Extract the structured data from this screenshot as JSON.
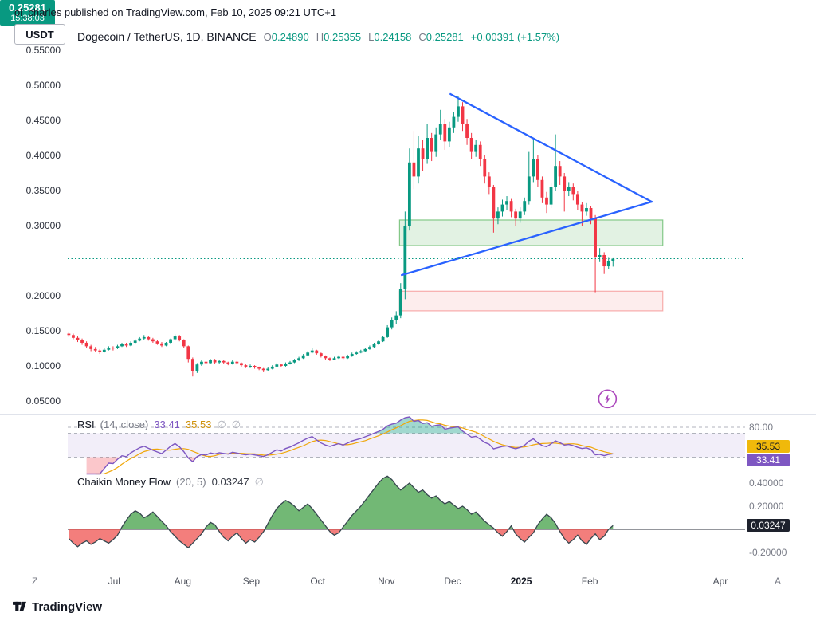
{
  "page": {
    "attribution": "ol_charles published on TradingView.com, Feb 10, 2025 09:21 UTC+1",
    "footer_brand": "TradingView"
  },
  "toolbar": {
    "currency_tab": "USDT"
  },
  "legend": {
    "symbol": "Dogecoin / TetherUS, 1D, BINANCE",
    "o_label": "O",
    "o": "0.24890",
    "h_label": "H",
    "h": "0.25355",
    "l_label": "L",
    "l": "0.24158",
    "c_label": "C",
    "c": "0.25281",
    "change": "+0.00391 (+1.57%)"
  },
  "price_scale": {
    "badge_price": "0.25281",
    "badge_countdown": "15:38:03"
  },
  "rsi_panel": {
    "title": "RSI",
    "params": "(14, close)",
    "value_rsi": "33.41",
    "value_ma": "35.53",
    "ghost": "∅",
    "level_label": "80.00",
    "badge_ma": "35.53",
    "badge_rsi": "33.41"
  },
  "cmf_panel": {
    "title": "Chaikin Money Flow",
    "params": "(20, 5)",
    "value": "0.03247",
    "ghost": "∅",
    "scale_top": "0.40000",
    "scale_mid": "0.20000",
    "badge": "0.03247",
    "scale_bottom": "-0.20000"
  },
  "time_axis": {
    "left_char": "Z",
    "right_char": "A"
  },
  "chart_data": {
    "type": "candlestick",
    "title": "Dogecoin / TetherUS, 1D, BINANCE",
    "price_axis": {
      "side": "left",
      "min": 0.05,
      "max": 0.55,
      "tick_step": 0.05
    },
    "price_ticks": [
      "0.55000",
      "0.50000",
      "0.45000",
      "0.40000",
      "0.35000",
      "0.30000",
      "0.20000",
      "0.15000",
      "0.10000",
      "0.05000"
    ],
    "time_axis_ticks": [
      {
        "label": "Jul",
        "day": 21
      },
      {
        "label": "Aug",
        "day": 52
      },
      {
        "label": "Sep",
        "day": 83
      },
      {
        "label": "Oct",
        "day": 113
      },
      {
        "label": "Nov",
        "day": 144
      },
      {
        "label": "Dec",
        "day": 174
      },
      {
        "label": "2025",
        "day": 205
      },
      {
        "label": "Feb",
        "day": 236
      },
      {
        "label": "Apr",
        "day": 295
      }
    ],
    "days_per_candle": 2,
    "price_line": 0.25281,
    "last_close": 0.25281,
    "candles": [
      [
        0.146,
        0.149,
        0.141,
        0.144
      ],
      [
        0.144,
        0.146,
        0.138,
        0.14
      ],
      [
        0.14,
        0.142,
        0.134,
        0.137
      ],
      [
        0.137,
        0.139,
        0.13,
        0.133
      ],
      [
        0.133,
        0.135,
        0.126,
        0.128
      ],
      [
        0.128,
        0.13,
        0.121,
        0.124
      ],
      [
        0.124,
        0.127,
        0.12,
        0.122
      ],
      [
        0.122,
        0.124,
        0.117,
        0.12
      ],
      [
        0.12,
        0.125,
        0.119,
        0.123
      ],
      [
        0.123,
        0.128,
        0.122,
        0.126
      ],
      [
        0.126,
        0.128,
        0.122,
        0.125
      ],
      [
        0.125,
        0.13,
        0.124,
        0.128
      ],
      [
        0.128,
        0.133,
        0.127,
        0.131
      ],
      [
        0.131,
        0.133,
        0.127,
        0.129
      ],
      [
        0.129,
        0.135,
        0.128,
        0.133
      ],
      [
        0.133,
        0.138,
        0.132,
        0.136
      ],
      [
        0.136,
        0.141,
        0.135,
        0.139
      ],
      [
        0.139,
        0.144,
        0.137,
        0.141
      ],
      [
        0.141,
        0.143,
        0.136,
        0.138
      ],
      [
        0.138,
        0.14,
        0.133,
        0.135
      ],
      [
        0.135,
        0.137,
        0.13,
        0.132
      ],
      [
        0.132,
        0.134,
        0.127,
        0.129
      ],
      [
        0.129,
        0.134,
        0.128,
        0.133
      ],
      [
        0.133,
        0.139,
        0.132,
        0.138
      ],
      [
        0.138,
        0.145,
        0.136,
        0.142
      ],
      [
        0.142,
        0.144,
        0.135,
        0.137
      ],
      [
        0.137,
        0.138,
        0.125,
        0.128
      ],
      [
        0.128,
        0.129,
        0.105,
        0.11
      ],
      [
        0.11,
        0.112,
        0.085,
        0.093
      ],
      [
        0.093,
        0.104,
        0.09,
        0.102
      ],
      [
        0.102,
        0.108,
        0.1,
        0.106
      ],
      [
        0.106,
        0.108,
        0.101,
        0.104
      ],
      [
        0.104,
        0.11,
        0.103,
        0.108
      ],
      [
        0.108,
        0.11,
        0.103,
        0.105
      ],
      [
        0.105,
        0.109,
        0.103,
        0.107
      ],
      [
        0.107,
        0.108,
        0.103,
        0.105
      ],
      [
        0.105,
        0.106,
        0.101,
        0.103
      ],
      [
        0.103,
        0.108,
        0.102,
        0.106
      ],
      [
        0.106,
        0.107,
        0.102,
        0.104
      ],
      [
        0.104,
        0.105,
        0.099,
        0.101
      ],
      [
        0.101,
        0.102,
        0.097,
        0.099
      ],
      [
        0.099,
        0.102,
        0.097,
        0.1
      ],
      [
        0.1,
        0.101,
        0.096,
        0.098
      ],
      [
        0.098,
        0.099,
        0.094,
        0.096
      ],
      [
        0.096,
        0.097,
        0.091,
        0.094
      ],
      [
        0.094,
        0.098,
        0.093,
        0.096
      ],
      [
        0.096,
        0.101,
        0.095,
        0.099
      ],
      [
        0.099,
        0.104,
        0.098,
        0.102
      ],
      [
        0.102,
        0.103,
        0.098,
        0.1
      ],
      [
        0.1,
        0.105,
        0.099,
        0.103
      ],
      [
        0.103,
        0.107,
        0.102,
        0.105
      ],
      [
        0.105,
        0.11,
        0.104,
        0.108
      ],
      [
        0.108,
        0.113,
        0.107,
        0.111
      ],
      [
        0.111,
        0.117,
        0.11,
        0.115
      ],
      [
        0.115,
        0.121,
        0.114,
        0.119
      ],
      [
        0.119,
        0.125,
        0.118,
        0.122
      ],
      [
        0.122,
        0.123,
        0.116,
        0.118
      ],
      [
        0.118,
        0.119,
        0.112,
        0.114
      ],
      [
        0.114,
        0.115,
        0.109,
        0.111
      ],
      [
        0.111,
        0.112,
        0.107,
        0.109
      ],
      [
        0.109,
        0.113,
        0.108,
        0.111
      ],
      [
        0.111,
        0.115,
        0.11,
        0.113
      ],
      [
        0.113,
        0.114,
        0.109,
        0.111
      ],
      [
        0.111,
        0.116,
        0.11,
        0.114
      ],
      [
        0.114,
        0.119,
        0.113,
        0.117
      ],
      [
        0.117,
        0.121,
        0.116,
        0.119
      ],
      [
        0.119,
        0.123,
        0.118,
        0.121
      ],
      [
        0.121,
        0.126,
        0.12,
        0.124
      ],
      [
        0.124,
        0.129,
        0.123,
        0.127
      ],
      [
        0.127,
        0.133,
        0.126,
        0.131
      ],
      [
        0.131,
        0.137,
        0.13,
        0.135
      ],
      [
        0.135,
        0.143,
        0.134,
        0.141
      ],
      [
        0.141,
        0.158,
        0.14,
        0.155
      ],
      [
        0.155,
        0.169,
        0.152,
        0.165
      ],
      [
        0.165,
        0.178,
        0.16,
        0.172
      ],
      [
        0.172,
        0.218,
        0.168,
        0.21
      ],
      [
        0.21,
        0.32,
        0.195,
        0.3
      ],
      [
        0.3,
        0.41,
        0.293,
        0.39
      ],
      [
        0.39,
        0.435,
        0.352,
        0.37
      ],
      [
        0.37,
        0.428,
        0.36,
        0.41
      ],
      [
        0.41,
        0.422,
        0.378,
        0.395
      ],
      [
        0.395,
        0.445,
        0.388,
        0.425
      ],
      [
        0.425,
        0.432,
        0.392,
        0.405
      ],
      [
        0.405,
        0.44,
        0.398,
        0.43
      ],
      [
        0.43,
        0.465,
        0.422,
        0.445
      ],
      [
        0.445,
        0.452,
        0.408,
        0.42
      ],
      [
        0.42,
        0.448,
        0.412,
        0.44
      ],
      [
        0.44,
        0.462,
        0.432,
        0.455
      ],
      [
        0.455,
        0.485,
        0.448,
        0.47
      ],
      [
        0.47,
        0.476,
        0.435,
        0.445
      ],
      [
        0.445,
        0.452,
        0.415,
        0.425
      ],
      [
        0.425,
        0.432,
        0.395,
        0.405
      ],
      [
        0.405,
        0.422,
        0.398,
        0.415
      ],
      [
        0.415,
        0.42,
        0.385,
        0.395
      ],
      [
        0.395,
        0.4,
        0.36,
        0.37
      ],
      [
        0.37,
        0.376,
        0.345,
        0.355
      ],
      [
        0.355,
        0.358,
        0.29,
        0.31
      ],
      [
        0.31,
        0.326,
        0.302,
        0.32
      ],
      [
        0.32,
        0.337,
        0.313,
        0.33
      ],
      [
        0.33,
        0.342,
        0.322,
        0.335
      ],
      [
        0.335,
        0.338,
        0.312,
        0.32
      ],
      [
        0.32,
        0.324,
        0.3,
        0.31
      ],
      [
        0.31,
        0.326,
        0.304,
        0.32
      ],
      [
        0.32,
        0.34,
        0.315,
        0.335
      ],
      [
        0.335,
        0.405,
        0.33,
        0.37
      ],
      [
        0.37,
        0.425,
        0.362,
        0.395
      ],
      [
        0.395,
        0.4,
        0.355,
        0.365
      ],
      [
        0.365,
        0.37,
        0.332,
        0.34
      ],
      [
        0.34,
        0.348,
        0.318,
        0.33
      ],
      [
        0.33,
        0.36,
        0.325,
        0.355
      ],
      [
        0.355,
        0.43,
        0.35,
        0.385
      ],
      [
        0.385,
        0.392,
        0.358,
        0.37
      ],
      [
        0.37,
        0.375,
        0.32,
        0.35
      ],
      [
        0.35,
        0.362,
        0.342,
        0.355
      ],
      [
        0.355,
        0.36,
        0.336,
        0.345
      ],
      [
        0.345,
        0.35,
        0.322,
        0.33
      ],
      [
        0.33,
        0.334,
        0.3,
        0.32
      ],
      [
        0.32,
        0.332,
        0.314,
        0.325
      ],
      [
        0.325,
        0.328,
        0.302,
        0.31
      ],
      [
        0.31,
        0.315,
        0.205,
        0.255
      ],
      [
        0.255,
        0.268,
        0.248,
        0.258
      ],
      [
        0.258,
        0.262,
        0.231,
        0.242
      ],
      [
        0.242,
        0.254,
        0.238,
        0.249
      ],
      [
        0.2489,
        0.25355,
        0.24158,
        0.25281
      ]
    ],
    "zones": [
      {
        "name": "resistance-zone",
        "from_day": 150,
        "to_day": 269,
        "top": 0.308,
        "bottom": 0.2715,
        "fill": "rgba(76,175,80,0.16)",
        "border": "rgba(76,175,80,0.65)"
      },
      {
        "name": "support-zone",
        "from_day": 150,
        "to_day": 269,
        "top": 0.2065,
        "bottom": 0.1785,
        "fill": "rgba(239,83,80,0.10)",
        "border": "rgba(239,83,80,0.45)"
      }
    ],
    "trendlines": [
      {
        "name": "descending-trendline",
        "from": {
          "day": 173,
          "price": 0.4875
        },
        "to": {
          "day": 264,
          "price": 0.334
        }
      },
      {
        "name": "ascending-trendline",
        "from": {
          "day": 151,
          "price": 0.2295
        },
        "to": {
          "day": 264,
          "price": 0.334
        }
      }
    ],
    "marker": {
      "name": "event-lightning",
      "day": 244,
      "price": 0.053
    },
    "rsi": {
      "length": 14,
      "source": "close",
      "last": 33.41,
      "ma_last": 35.53,
      "levels": [
        80,
        70,
        30
      ],
      "band": [
        30,
        70
      ]
    },
    "cmf": {
      "length": [
        20,
        5
      ],
      "last": 0.03247,
      "scale_ticks": [
        0.4,
        0.2,
        -0.2
      ],
      "values": [
        -0.08,
        -0.12,
        -0.15,
        -0.12,
        -0.1,
        -0.13,
        -0.11,
        -0.08,
        -0.1,
        -0.12,
        -0.09,
        -0.05,
        0.02,
        0.08,
        0.13,
        0.16,
        0.14,
        0.1,
        0.12,
        0.15,
        0.11,
        0.07,
        0.03,
        -0.02,
        -0.06,
        -0.1,
        -0.13,
        -0.16,
        -0.12,
        -0.08,
        -0.04,
        0.02,
        0.06,
        0.04,
        -0.02,
        -0.07,
        -0.1,
        -0.06,
        -0.03,
        -0.08,
        -0.12,
        -0.09,
        -0.11,
        -0.07,
        -0.02,
        0.05,
        0.12,
        0.18,
        0.22,
        0.25,
        0.23,
        0.2,
        0.16,
        0.19,
        0.22,
        0.18,
        0.13,
        0.08,
        0.03,
        -0.02,
        -0.05,
        -0.03,
        0.02,
        0.07,
        0.12,
        0.16,
        0.2,
        0.25,
        0.3,
        0.35,
        0.4,
        0.44,
        0.46,
        0.43,
        0.38,
        0.34,
        0.37,
        0.4,
        0.36,
        0.32,
        0.34,
        0.3,
        0.27,
        0.29,
        0.25,
        0.22,
        0.24,
        0.21,
        0.18,
        0.2,
        0.17,
        0.13,
        0.15,
        0.11,
        0.07,
        0.04,
        0.01,
        -0.03,
        -0.06,
        -0.02,
        0.03,
        -0.04,
        -0.08,
        -0.11,
        -0.07,
        -0.03,
        0.04,
        0.09,
        0.13,
        0.1,
        0.05,
        -0.02,
        -0.08,
        -0.12,
        -0.09,
        -0.05,
        -0.1,
        -0.13,
        -0.08,
        -0.04,
        -0.09,
        -0.06,
        0.0,
        0.03247
      ]
    },
    "colors": {
      "up": "#089981",
      "down": "#f23645",
      "trendline": "#2962ff",
      "rsi": "#7e57c2",
      "rsi_ma": "#f0a70a",
      "cmf_pos": "#43a047",
      "cmf_neg": "#ef5350",
      "price_badge": "#089981"
    }
  }
}
